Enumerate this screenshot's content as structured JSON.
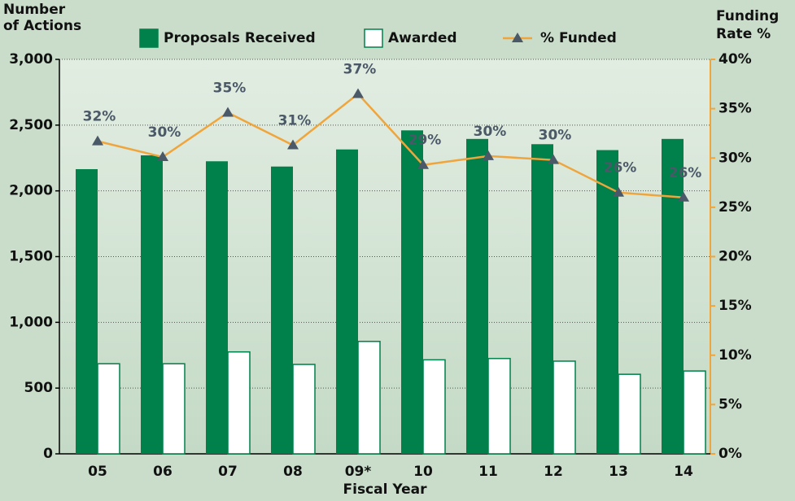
{
  "chart_data": {
    "type": "bar",
    "y_label": [
      "Number",
      "of Actions"
    ],
    "y2_label": [
      "Funding",
      "Rate %"
    ],
    "x_label": "Fiscal Year",
    "categories": [
      "05",
      "06",
      "07",
      "08",
      "09*",
      "10",
      "11",
      "12",
      "13",
      "14"
    ],
    "series": [
      {
        "name": "Proposals Received",
        "color": "#00804a",
        "values": [
          2165,
          2270,
          2225,
          2185,
          2315,
          2460,
          2395,
          2355,
          2310,
          2395
        ]
      },
      {
        "name": "Awarded",
        "color": "#ffffff",
        "values": [
          685,
          685,
          775,
          680,
          855,
          715,
          725,
          705,
          605,
          630
        ]
      },
      {
        "name": "% Funded",
        "color": "#f0a53c",
        "type": "line",
        "axis": "y2",
        "values": [
          31.7,
          30.1,
          34.6,
          31.3,
          36.5,
          29.3,
          30.2,
          29.8,
          26.5,
          26.0
        ],
        "value_labels": [
          "32%",
          "30%",
          "35%",
          "31%",
          "37%",
          "29%",
          "30%",
          "30%",
          "26%",
          "26%"
        ]
      }
    ],
    "ylim": [
      0,
      3000
    ],
    "yticks": [
      0,
      500,
      {
        "value": 1000,
        "label": "1,000"
      },
      {
        "value": 1500,
        "label": "1,500"
      },
      {
        "value": 2000,
        "label": "2,000"
      },
      {
        "value": 2500,
        "label": "2,500"
      },
      {
        "value": 3000,
        "label": "3,000"
      }
    ],
    "y2lim": [
      0,
      40
    ],
    "y2ticks": [
      {
        "value": 0,
        "label": "0%"
      },
      {
        "value": 5,
        "label": "5%"
      },
      {
        "value": 10,
        "label": "10%"
      },
      {
        "value": 15,
        "label": "15%"
      },
      {
        "value": 20,
        "label": "20%"
      },
      {
        "value": 25,
        "label": "25%"
      },
      {
        "value": 30,
        "label": "30%"
      },
      {
        "value": 35,
        "label": "35%"
      },
      {
        "value": 40,
        "label": "40%"
      }
    ],
    "grid": true,
    "legend": "top"
  }
}
